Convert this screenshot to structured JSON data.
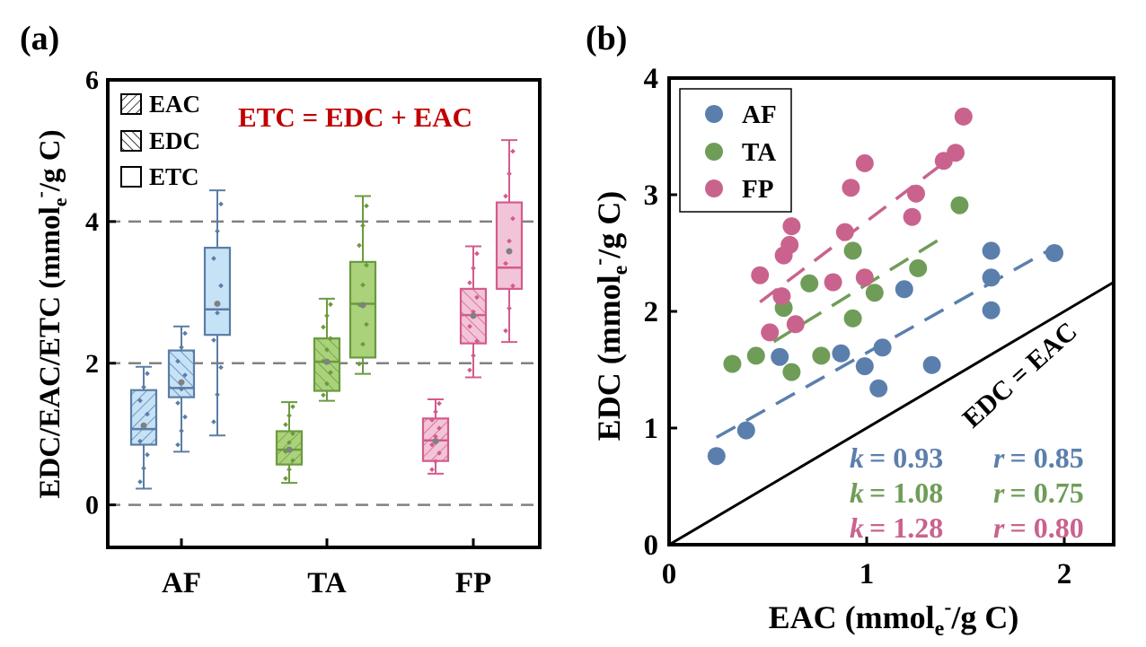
{
  "chart_data": [
    {
      "panel_label": "(a)",
      "type": "box",
      "categories": [
        "AF",
        "TA",
        "FP"
      ],
      "ylabel": "EDC/EAC/ETC (mmol",
      "ylabel_sub": "e",
      "ylabel_sup": "-",
      "ylabel_tail": "/g C)",
      "ylim": [
        -0.6,
        6
      ],
      "yticks": [
        0,
        2,
        4,
        6
      ],
      "grid_y": [
        0,
        2,
        4
      ],
      "legend": [
        {
          "label": "EAC",
          "hatch": "forward"
        },
        {
          "label": "EDC",
          "hatch": "backward"
        },
        {
          "label": "ETC",
          "hatch": "none"
        }
      ],
      "equation": "ETC = EDC + EAC",
      "colors": {
        "AF": {
          "fill": "#c6e2f7",
          "stroke": "#5a7da6"
        },
        "TA": {
          "fill": "#a9d27a",
          "stroke": "#6b9a3e"
        },
        "FP": {
          "fill": "#f2c4d8",
          "stroke": "#d45b8c"
        },
        "equation": "#c00000"
      },
      "boxes": [
        {
          "category": "AF",
          "metric": "EAC",
          "min": 0.23,
          "q1": 0.85,
          "median": 1.07,
          "q3": 1.62,
          "max": 1.95,
          "mean": 1.12
        },
        {
          "category": "AF",
          "metric": "EDC",
          "min": 0.75,
          "q1": 1.52,
          "median": 1.65,
          "q3": 2.18,
          "max": 2.52,
          "mean": 1.73
        },
        {
          "category": "AF",
          "metric": "ETC",
          "min": 0.98,
          "q1": 2.4,
          "median": 2.76,
          "q3": 3.63,
          "max": 4.44,
          "mean": 2.84
        },
        {
          "category": "TA",
          "metric": "EAC",
          "min": 0.31,
          "q1": 0.57,
          "median": 0.78,
          "q3": 1.04,
          "max": 1.45,
          "mean": 0.78
        },
        {
          "category": "TA",
          "metric": "EDC",
          "min": 1.47,
          "q1": 1.61,
          "median": 2.02,
          "q3": 2.35,
          "max": 2.91,
          "mean": 2.02
        },
        {
          "category": "TA",
          "metric": "ETC",
          "min": 1.85,
          "q1": 2.08,
          "median": 2.84,
          "q3": 3.43,
          "max": 4.36,
          "mean": 2.82
        },
        {
          "category": "FP",
          "metric": "EAC",
          "min": 0.44,
          "q1": 0.62,
          "median": 0.91,
          "q3": 1.22,
          "max": 1.49,
          "mean": 0.9
        },
        {
          "category": "FP",
          "metric": "EDC",
          "min": 1.8,
          "q1": 2.28,
          "median": 2.68,
          "q3": 3.05,
          "max": 3.65,
          "mean": 2.67
        },
        {
          "category": "FP",
          "metric": "ETC",
          "min": 2.3,
          "q1": 3.05,
          "median": 3.35,
          "q3": 4.27,
          "max": 5.15,
          "mean": 3.58
        }
      ]
    },
    {
      "panel_label": "(b)",
      "type": "scatter",
      "xlabel": "EAC (mmol",
      "xlabel_sub": "e",
      "xlabel_sup": "-",
      "xlabel_tail": "/g C)",
      "ylabel": "EDC (mmol",
      "ylabel_sub": "e",
      "ylabel_sup": "-",
      "ylabel_tail": "/g C)",
      "xlim": [
        0,
        2.25
      ],
      "ylim": [
        0,
        4
      ],
      "xticks": [
        0,
        1,
        2
      ],
      "yticks": [
        0,
        1,
        2,
        3,
        4
      ],
      "legend_position": "top-left",
      "reference_line": {
        "label": "EDC = EAC",
        "slope": 1
      },
      "series": [
        {
          "name": "AF",
          "color": "#5b7fad",
          "k_label": "k",
          "k_value": "= 0.93",
          "r_label": "r",
          "r_value": "= 0.85",
          "points": [
            [
              0.24,
              0.76
            ],
            [
              0.39,
              0.98
            ],
            [
              0.56,
              1.61
            ],
            [
              0.87,
              1.64
            ],
            [
              0.99,
              1.53
            ],
            [
              1.06,
              1.34
            ],
            [
              1.08,
              1.69
            ],
            [
              1.19,
              2.19
            ],
            [
              1.33,
              1.54
            ],
            [
              1.63,
              2.52
            ],
            [
              1.63,
              2.29
            ],
            [
              1.63,
              2.01
            ],
            [
              1.95,
              2.5
            ]
          ],
          "fit": [
            [
              0.24,
              0.92
            ],
            [
              1.95,
              2.55
            ]
          ]
        },
        {
          "name": "TA",
          "color": "#6f9d58",
          "k_label": "k",
          "k_value": "= 1.08",
          "r_label": "r",
          "r_value": "= 0.75",
          "points": [
            [
              0.32,
              1.55
            ],
            [
              0.44,
              1.62
            ],
            [
              0.58,
              2.03
            ],
            [
              0.62,
              1.48
            ],
            [
              0.71,
              2.24
            ],
            [
              0.77,
              1.62
            ],
            [
              0.93,
              2.52
            ],
            [
              0.93,
              1.94
            ],
            [
              1.04,
              2.16
            ],
            [
              1.26,
              2.37
            ],
            [
              1.47,
              2.91
            ]
          ],
          "fit": [
            [
              0.53,
              1.74
            ],
            [
              1.4,
              2.65
            ]
          ]
        },
        {
          "name": "FP",
          "color": "#c9638e",
          "k_label": "k",
          "k_value": "= 1.28",
          "r_label": "r",
          "r_value": "= 0.80",
          "points": [
            [
              0.46,
              2.31
            ],
            [
              0.51,
              1.82
            ],
            [
              0.57,
              2.13
            ],
            [
              0.58,
              2.48
            ],
            [
              0.61,
              2.57
            ],
            [
              0.62,
              2.73
            ],
            [
              0.64,
              1.89
            ],
            [
              0.83,
              2.25
            ],
            [
              0.89,
              2.68
            ],
            [
              0.92,
              3.06
            ],
            [
              0.99,
              2.29
            ],
            [
              0.99,
              3.27
            ],
            [
              1.23,
              2.81
            ],
            [
              1.25,
              3.01
            ],
            [
              1.39,
              3.29
            ],
            [
              1.45,
              3.36
            ],
            [
              1.49,
              3.67
            ]
          ],
          "fit": [
            [
              0.46,
              2.08
            ],
            [
              1.45,
              3.35
            ]
          ]
        }
      ]
    }
  ]
}
